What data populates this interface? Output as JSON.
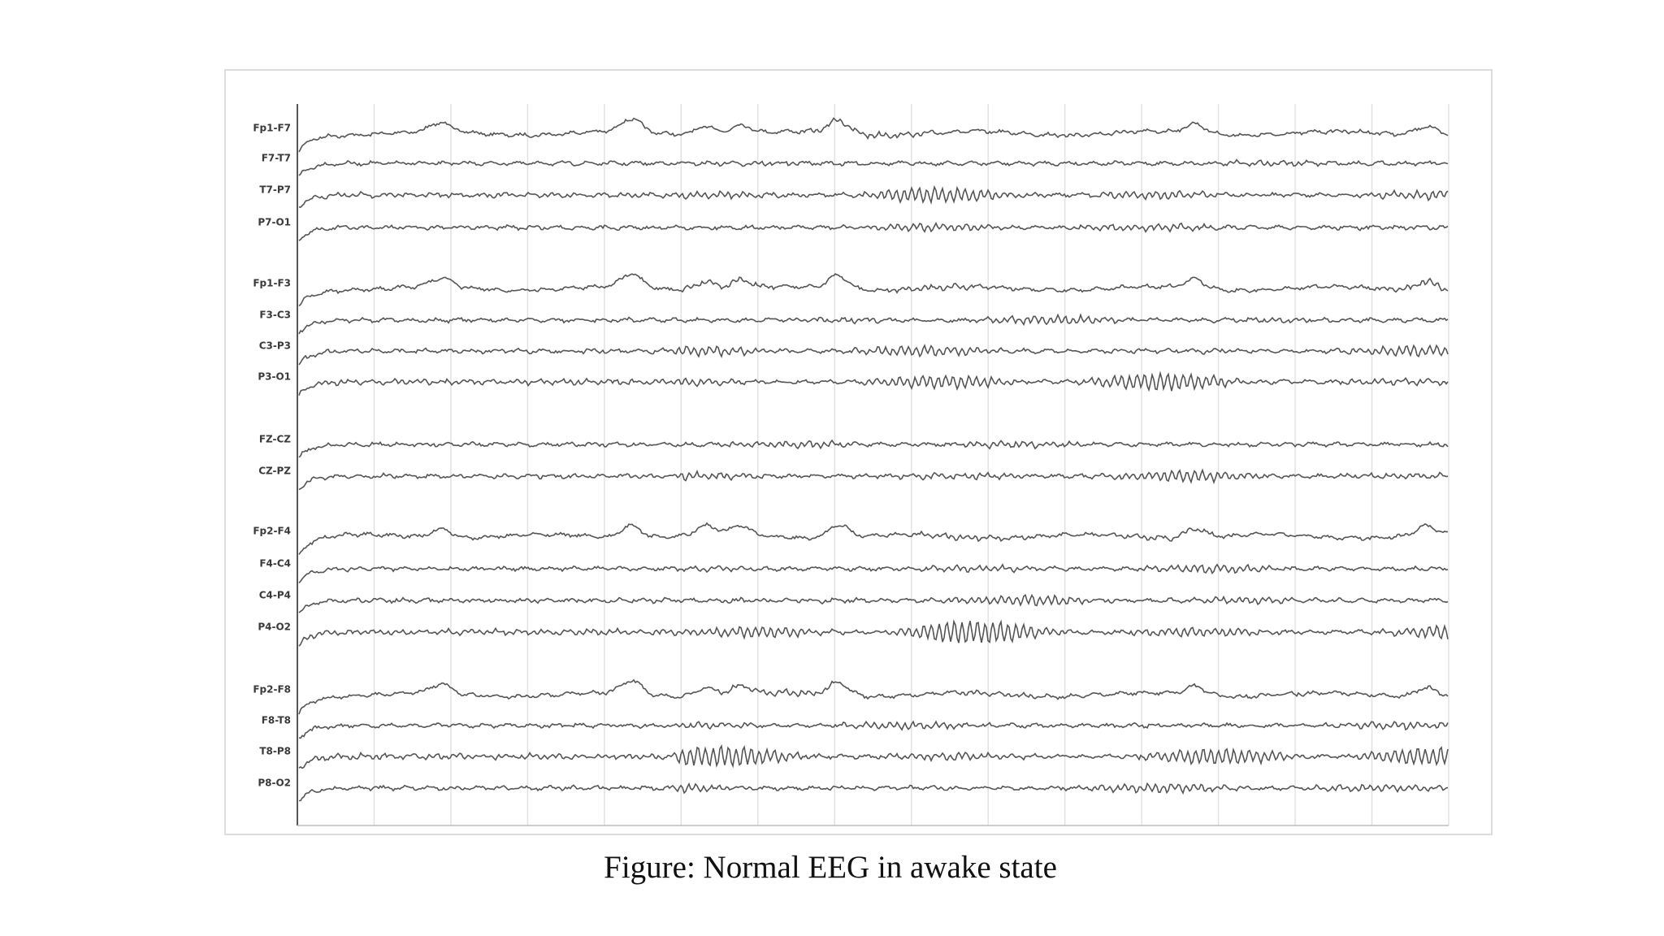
{
  "channels": [
    "Fp1-F7",
    "F7-T7",
    "T7-P7",
    "P7-O1",
    "Fp1-F3",
    "F3-C3",
    "C3-P3",
    "P3-O1",
    "FZ-CZ",
    "CZ-PZ",
    "Fp2-F4",
    "F4-C4",
    "C4-P4",
    "P4-O2",
    "Fp2-F8",
    "F8-T8",
    "T8-P8",
    "P8-O2"
  ],
  "caption": "Figure: Normal EEG in awake state"
}
